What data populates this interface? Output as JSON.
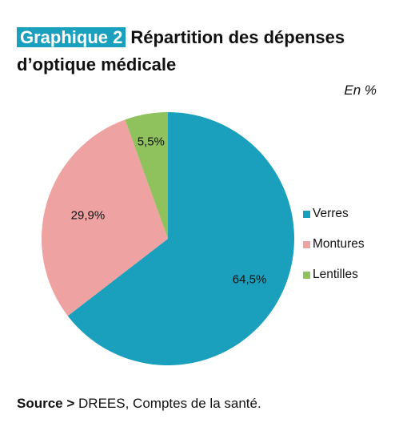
{
  "header": {
    "badge": "Graphique 2",
    "title": "Répartition des dépenses d’optique médicale"
  },
  "unit": "En %",
  "source": {
    "label": "Source >",
    "text": "DREES, Comptes de la santé."
  },
  "chart_data": {
    "type": "pie",
    "title": "Répartition des dépenses d’optique médicale",
    "categories": [
      "Verres",
      "Montures",
      "Lentilles"
    ],
    "values": [
      64.5,
      29.9,
      5.5
    ],
    "data_labels": [
      "64,5%",
      "29,9%",
      "5,5%"
    ],
    "colors": [
      "#1aa0bd",
      "#eea2a1",
      "#8fc25d"
    ],
    "legend_position": "right"
  }
}
